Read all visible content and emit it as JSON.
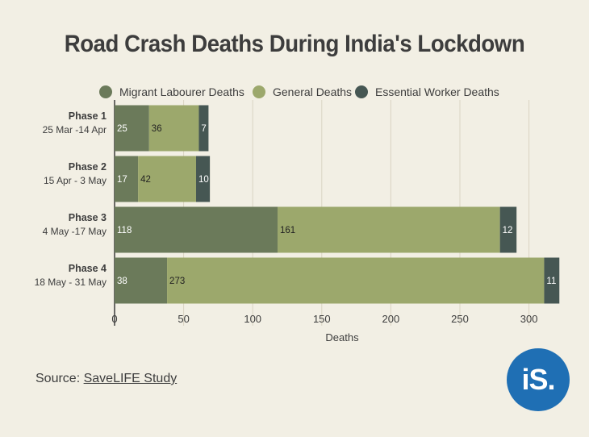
{
  "title": "Road Crash Deaths During India's Lockdown",
  "source": {
    "prefix": "Source: ",
    "link_text": "SaveLIFE Study"
  },
  "logo": {
    "text": "iS."
  },
  "colors": {
    "migrant": "#6b7a5a",
    "general": "#9ca86c",
    "essential": "#465753",
    "background": "#f2efe4",
    "logo": "#1f6fb4"
  },
  "chart_data": {
    "type": "bar",
    "orientation": "horizontal",
    "stacked": true,
    "title": "Road Crash Deaths During India's Lockdown",
    "xlabel": "Deaths",
    "ylabel": "",
    "xlim": [
      0,
      325
    ],
    "xticks": [
      0,
      50,
      100,
      150,
      200,
      250,
      300
    ],
    "grid": "vertical",
    "legend_position": "top",
    "categories": [
      {
        "name": "Phase 1",
        "dates": "25 Mar -14 Apr"
      },
      {
        "name": "Phase 2",
        "dates": "15 Apr - 3 May"
      },
      {
        "name": "Phase 3",
        "dates": "4 May -17 May"
      },
      {
        "name": "Phase 4",
        "dates": "18 May - 31 May"
      }
    ],
    "series": [
      {
        "name": "Migrant Labourer Deaths",
        "color": "#6b7a5a",
        "values": [
          25,
          17,
          118,
          38
        ]
      },
      {
        "name": "General Deaths",
        "color": "#9ca86c",
        "values": [
          36,
          42,
          161,
          273
        ]
      },
      {
        "name": "Essential Worker Deaths",
        "color": "#465753",
        "values": [
          7,
          10,
          12,
          11
        ]
      }
    ]
  }
}
